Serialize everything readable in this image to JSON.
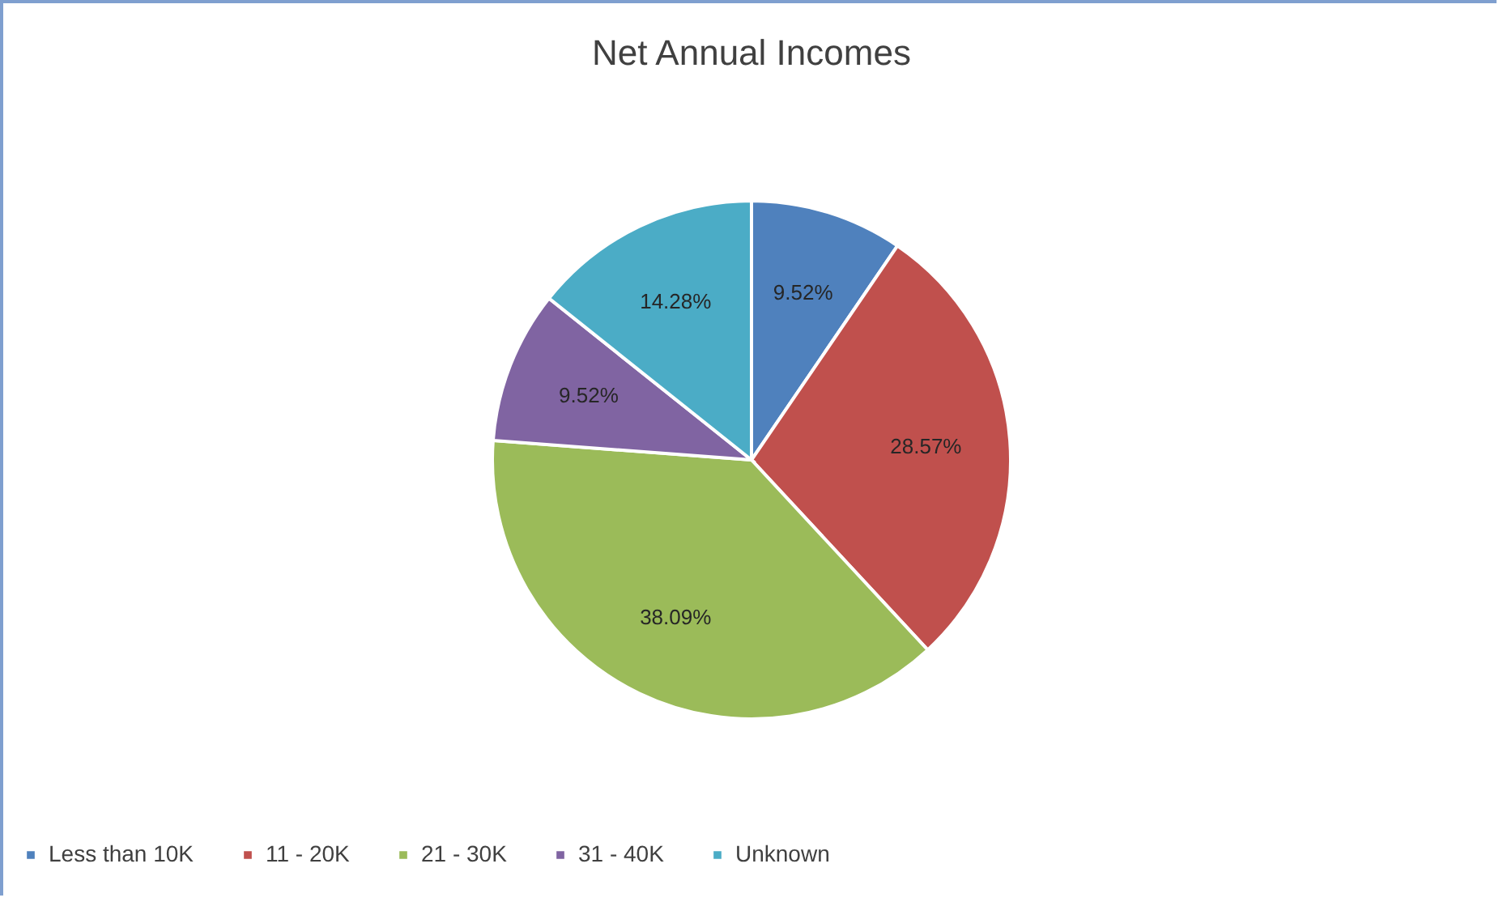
{
  "chart_data": {
    "type": "pie",
    "title": "Net Annual Incomes",
    "categories": [
      "Less than 10K",
      "11 - 20K",
      "21 - 30K",
      "31 - 40K",
      "Unknown"
    ],
    "values": [
      9.52,
      28.57,
      38.09,
      9.52,
      14.28
    ],
    "value_labels": [
      "9.52%",
      "28.57%",
      "38.09%",
      "9.52%",
      "14.28%"
    ],
    "colors": [
      "#4f81bd",
      "#c0504d",
      "#9bbb59",
      "#8064a2",
      "#4bacc6"
    ],
    "legend": "bottom"
  }
}
